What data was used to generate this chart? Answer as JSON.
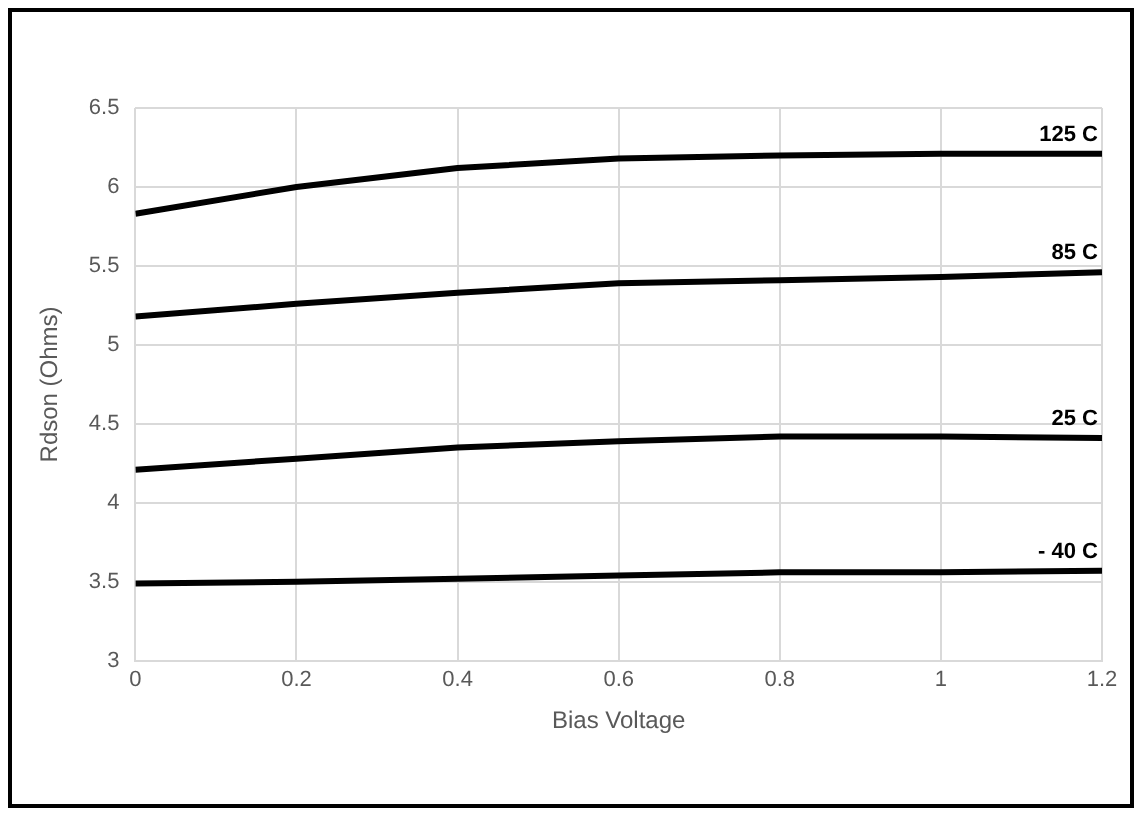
{
  "chart_data": {
    "type": "line",
    "xlabel": "Bias Voltage",
    "ylabel": "Rdson (Ohms)",
    "x": [
      0,
      0.2,
      0.4,
      0.6,
      0.8,
      1,
      1.2
    ],
    "series": [
      {
        "name": "125 C",
        "color": "#000000",
        "values": [
          5.83,
          6.0,
          6.12,
          6.18,
          6.2,
          6.21,
          6.21
        ]
      },
      {
        "name": "85 C",
        "color": "#000000",
        "values": [
          5.18,
          5.26,
          5.33,
          5.39,
          5.41,
          5.43,
          5.46
        ]
      },
      {
        "name": "25 C",
        "color": "#000000",
        "values": [
          4.21,
          4.28,
          4.35,
          4.39,
          4.42,
          4.42,
          4.41
        ]
      },
      {
        "name": "- 40 C",
        "color": "#000000",
        "values": [
          3.49,
          3.5,
          3.52,
          3.54,
          3.56,
          3.56,
          3.57
        ]
      }
    ],
    "xlim": [
      0,
      1.2
    ],
    "xticks": [
      0,
      0.2,
      0.4,
      0.6,
      0.8,
      1,
      1.2
    ],
    "ylim": [
      3,
      6.5
    ],
    "yticks": [
      3,
      3.5,
      4,
      4.5,
      5,
      5.5,
      6,
      6.5
    ],
    "grid": true,
    "legend": false,
    "marker": "none",
    "line_style": "solid"
  }
}
